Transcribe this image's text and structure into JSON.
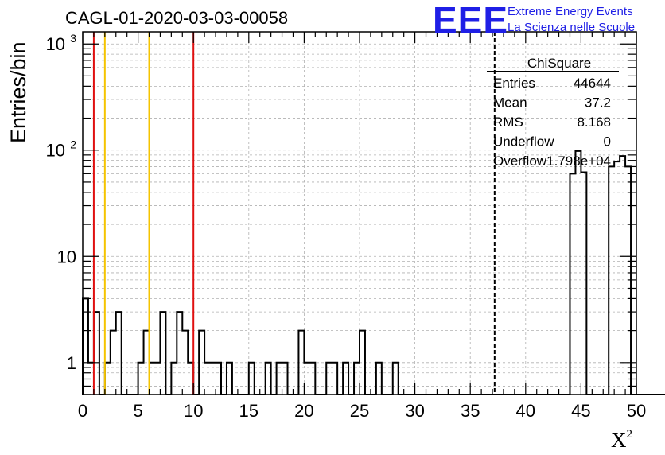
{
  "header": {
    "run_title": "CAGL-01-2020-03-03-00058",
    "logo_text": "EEE",
    "logo_line1": "Extreme Energy Events",
    "logo_line2": "La Scienza nelle Scuole"
  },
  "chart_data": {
    "type": "histogram",
    "xlabel": "X",
    "xlabel_superscript": "2",
    "ylabel": "Entries/bin",
    "xlim": [
      0,
      50
    ],
    "ylim": [
      0.5,
      1300
    ],
    "yscale": "log",
    "grid": true,
    "x_ticks": [
      "0",
      "5",
      "10",
      "15",
      "20",
      "25",
      "30",
      "35",
      "40",
      "45",
      "50"
    ],
    "y_ticks": [
      {
        "value": 1,
        "label": "1"
      },
      {
        "value": 10,
        "label": "10"
      },
      {
        "value": 100,
        "label": "10",
        "sup": "2"
      },
      {
        "value": 1000,
        "label": "10",
        "sup": "3"
      }
    ],
    "bin_width": 0.5,
    "bin_start": 0,
    "values": [
      4,
      1,
      3,
      0,
      1,
      2,
      3,
      0,
      0,
      0,
      1,
      2,
      1,
      1,
      3,
      0,
      1,
      3,
      2,
      1,
      0,
      2,
      1,
      1,
      1,
      0,
      1,
      0,
      0,
      0,
      1,
      0,
      0,
      1,
      0,
      1,
      1,
      0,
      0,
      2,
      1,
      1,
      0,
      0,
      1,
      1,
      0,
      1,
      0,
      1,
      2,
      0,
      0,
      1,
      0,
      0,
      1,
      0,
      0,
      0,
      0,
      0,
      0,
      0,
      0,
      0,
      0,
      0,
      0,
      0,
      0,
      0,
      0,
      0,
      0,
      0,
      0,
      0,
      0,
      0,
      0,
      0,
      0,
      0,
      0,
      0,
      0,
      0,
      60,
      98,
      62,
      0,
      0,
      0,
      0,
      70,
      78,
      88,
      70,
      0,
      0,
      0,
      0,
      0,
      0,
      0,
      0,
      0,
      0,
      0,
      0,
      0,
      0,
      0,
      0,
      0,
      0,
      0,
      0,
      0,
      0,
      0,
      0,
      0,
      0,
      0,
      0,
      0,
      0,
      0,
      0,
      0,
      0,
      0,
      0,
      0,
      0,
      0,
      0,
      0,
      0,
      0,
      0,
      0,
      0,
      0,
      0,
      0,
      0,
      0,
      0,
      0,
      0,
      0,
      0,
      0,
      0,
      0,
      0,
      0,
      0,
      0,
      0,
      0,
      0,
      0,
      0,
      0,
      0,
      0,
      0,
      0,
      0,
      0,
      0,
      0,
      0,
      0,
      0,
      0,
      0,
      0,
      0,
      0,
      0,
      0,
      0,
      0
    ],
    "reference_lines": [
      {
        "x": 1,
        "color": "#e01010"
      },
      {
        "x": 2,
        "color": "#f5c400"
      },
      {
        "x": 6,
        "color": "#f5c400"
      },
      {
        "x": 10,
        "color": "#e01010"
      },
      {
        "x": 37.2,
        "color": "#000000",
        "dashed": true
      }
    ],
    "stats": {
      "title": "ChiSquare",
      "rows": [
        {
          "label": "Entries",
          "value": "44644"
        },
        {
          "label": "Mean",
          "value": "37.2"
        },
        {
          "label": "RMS",
          "value": "8.168"
        },
        {
          "label": "Underflow",
          "value": "0"
        },
        {
          "label": "Overflow",
          "value": "1.798e+04"
        }
      ]
    }
  }
}
